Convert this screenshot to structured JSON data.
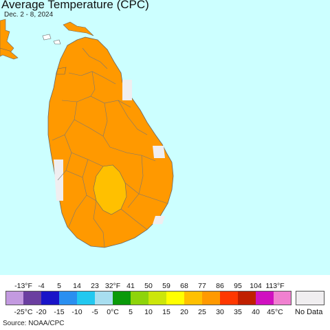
{
  "header": {
    "title": "Average Temperature (CPC)",
    "subtitle": "Dec. 2 - 8, 2024"
  },
  "map": {
    "region": "Sri Lanka",
    "ocean_color": "#ccffff",
    "land_color": "#ff9900",
    "warm_core_color": "#ffc000",
    "no_data_color": "#f0eef0",
    "border_color": "#666666"
  },
  "legend": {
    "fahrenheit_ticks": [
      "-13°F",
      "-4",
      "5",
      "14",
      "23",
      "32°F",
      "41",
      "50",
      "59",
      "68",
      "77",
      "86",
      "95",
      "104",
      "113°F"
    ],
    "celsius_ticks": [
      "-25°C",
      "-20",
      "-15",
      "-10",
      "-5",
      "0°C",
      "5",
      "10",
      "15",
      "20",
      "25",
      "30",
      "35",
      "40",
      "45°C"
    ],
    "colors": [
      "#c39ae0",
      "#6b3fa0",
      "#1a14c8",
      "#2a8ff0",
      "#22c8f0",
      "#a8def0",
      "#0a9a0a",
      "#8ed40a",
      "#cce60a",
      "#ffff00",
      "#ffc000",
      "#ff9900",
      "#ff3800",
      "#c02000",
      "#d010c0",
      "#f080d0"
    ],
    "no_data_label": "No Data"
  },
  "footer": {
    "source": "Source: NOAA/CPC"
  }
}
